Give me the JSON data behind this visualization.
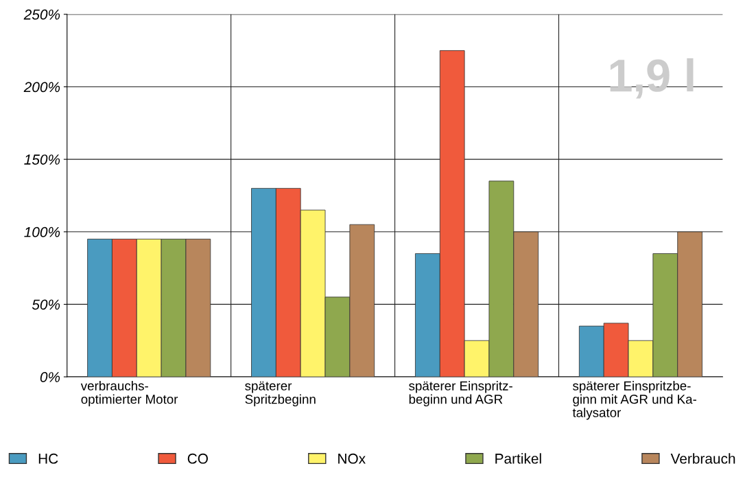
{
  "chart_data": {
    "type": "bar",
    "categories": [
      "verbrauchs-\noptimierter Motor",
      "späterer\nSpritzbeginn",
      "späterer Einspritz-\nbeginn und AGR",
      "späterer Einspritzbe-\nginn mit AGR und Ka-\ntalysator"
    ],
    "series": [
      {
        "name": "HC",
        "color": "#4a9bc0",
        "values": [
          95,
          130,
          85,
          35
        ]
      },
      {
        "name": "CO",
        "color": "#f05a3c",
        "values": [
          95,
          130,
          225,
          37
        ]
      },
      {
        "name": "NOx",
        "color": "#fff36a",
        "values": [
          95,
          115,
          25,
          25
        ]
      },
      {
        "name": "Partikel",
        "color": "#8fa84e",
        "values": [
          95,
          55,
          135,
          85
        ]
      },
      {
        "name": "Verbrauch",
        "color": "#b8865c",
        "values": [
          95,
          105,
          100,
          100
        ]
      }
    ],
    "ylim": [
      0,
      250
    ],
    "yticks": [
      {
        "value": 0,
        "label": "0%"
      },
      {
        "value": 50,
        "label": "50%"
      },
      {
        "value": 100,
        "label": "100%"
      },
      {
        "value": 150,
        "label": "150%"
      },
      {
        "value": 200,
        "label": "200%"
      },
      {
        "value": 250,
        "label": "250%"
      }
    ],
    "grid": true,
    "legend": "bottom",
    "annotations": [
      "1,9 l"
    ]
  }
}
